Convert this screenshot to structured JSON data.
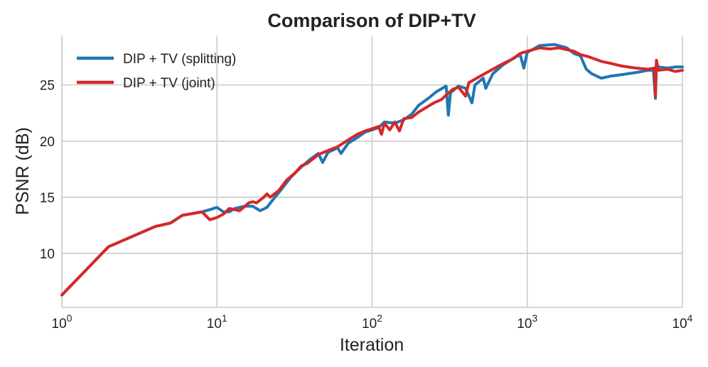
{
  "chart_data": {
    "type": "line",
    "title": "Comparison of DIP+TV",
    "xlabel": "Iteration",
    "ylabel": "PSNR (dB)",
    "xscale": "log",
    "xlim": [
      1,
      10000
    ],
    "ylim": [
      5.2,
      29.4
    ],
    "x_ticks": [
      {
        "value": 1,
        "base": "10",
        "exp": "0"
      },
      {
        "value": 10,
        "base": "10",
        "exp": "1"
      },
      {
        "value": 100,
        "base": "10",
        "exp": "2"
      },
      {
        "value": 1000,
        "base": "10",
        "exp": "3"
      },
      {
        "value": 10000,
        "base": "10",
        "exp": "4"
      }
    ],
    "y_ticks": [
      {
        "value": 10,
        "label": "10"
      },
      {
        "value": 15,
        "label": "15"
      },
      {
        "value": 20,
        "label": "20"
      },
      {
        "value": 25,
        "label": "25"
      }
    ],
    "grid": true,
    "legend_position": "top-left",
    "series": [
      {
        "name": "DIP + TV (splitting)",
        "color": "#1f77b4",
        "points": [
          [
            1,
            6.3
          ],
          [
            2,
            10.6
          ],
          [
            4,
            12.4
          ],
          [
            5,
            12.7
          ],
          [
            6,
            13.4
          ],
          [
            8,
            13.7
          ],
          [
            9,
            13.9
          ],
          [
            10,
            14.1
          ],
          [
            11,
            13.7
          ],
          [
            12,
            13.7
          ],
          [
            13,
            14.0
          ],
          [
            15,
            14.2
          ],
          [
            17,
            14.2
          ],
          [
            19,
            13.8
          ],
          [
            21,
            14.1
          ],
          [
            23,
            14.8
          ],
          [
            26,
            15.7
          ],
          [
            30,
            16.8
          ],
          [
            35,
            17.7
          ],
          [
            40,
            18.4
          ],
          [
            45,
            18.9
          ],
          [
            48,
            18.1
          ],
          [
            52,
            19.0
          ],
          [
            60,
            19.4
          ],
          [
            63,
            18.9
          ],
          [
            70,
            19.8
          ],
          [
            80,
            20.3
          ],
          [
            90,
            20.8
          ],
          [
            100,
            21.0
          ],
          [
            110,
            21.2
          ],
          [
            120,
            21.7
          ],
          [
            140,
            21.6
          ],
          [
            160,
            21.9
          ],
          [
            180,
            22.4
          ],
          [
            200,
            23.2
          ],
          [
            230,
            23.8
          ],
          [
            260,
            24.4
          ],
          [
            300,
            24.9
          ],
          [
            310,
            22.3
          ],
          [
            320,
            24.3
          ],
          [
            360,
            24.9
          ],
          [
            400,
            24.7
          ],
          [
            440,
            23.4
          ],
          [
            460,
            25.0
          ],
          [
            520,
            25.6
          ],
          [
            540,
            24.7
          ],
          [
            600,
            26.0
          ],
          [
            700,
            26.8
          ],
          [
            800,
            27.3
          ],
          [
            900,
            27.7
          ],
          [
            950,
            26.5
          ],
          [
            1000,
            27.9
          ],
          [
            1200,
            28.5
          ],
          [
            1500,
            28.6
          ],
          [
            1800,
            28.3
          ],
          [
            2000,
            27.8
          ],
          [
            2200,
            27.6
          ],
          [
            2400,
            26.4
          ],
          [
            2600,
            26.0
          ],
          [
            3000,
            25.6
          ],
          [
            3500,
            25.8
          ],
          [
            4000,
            25.9
          ],
          [
            5000,
            26.1
          ],
          [
            6000,
            26.3
          ],
          [
            6500,
            26.3
          ],
          [
            6700,
            23.8
          ],
          [
            6800,
            27.0
          ],
          [
            7000,
            26.6
          ],
          [
            8000,
            26.5
          ],
          [
            9000,
            26.6
          ],
          [
            10000,
            26.6
          ]
        ]
      },
      {
        "name": "DIP + TV (joint)",
        "color": "#d62728",
        "points": [
          [
            1,
            6.3
          ],
          [
            2,
            10.6
          ],
          [
            4,
            12.4
          ],
          [
            5,
            12.7
          ],
          [
            6,
            13.4
          ],
          [
            8,
            13.7
          ],
          [
            9,
            13.0
          ],
          [
            10,
            13.2
          ],
          [
            11,
            13.5
          ],
          [
            12,
            14.0
          ],
          [
            14,
            13.8
          ],
          [
            16,
            14.5
          ],
          [
            17,
            14.6
          ],
          [
            18,
            14.5
          ],
          [
            20,
            15.0
          ],
          [
            21,
            15.3
          ],
          [
            22,
            15.0
          ],
          [
            25,
            15.6
          ],
          [
            28,
            16.5
          ],
          [
            32,
            17.2
          ],
          [
            35,
            17.8
          ],
          [
            38,
            18.0
          ],
          [
            45,
            18.8
          ],
          [
            55,
            19.3
          ],
          [
            60,
            19.5
          ],
          [
            70,
            20.1
          ],
          [
            80,
            20.6
          ],
          [
            90,
            20.9
          ],
          [
            100,
            21.1
          ],
          [
            110,
            21.3
          ],
          [
            115,
            20.6
          ],
          [
            120,
            21.6
          ],
          [
            130,
            21.0
          ],
          [
            140,
            21.7
          ],
          [
            150,
            20.9
          ],
          [
            160,
            22.0
          ],
          [
            180,
            22.1
          ],
          [
            200,
            22.6
          ],
          [
            230,
            23.1
          ],
          [
            250,
            23.4
          ],
          [
            280,
            23.7
          ],
          [
            300,
            24.1
          ],
          [
            330,
            24.6
          ],
          [
            360,
            24.8
          ],
          [
            400,
            24.0
          ],
          [
            420,
            25.2
          ],
          [
            500,
            25.8
          ],
          [
            600,
            26.4
          ],
          [
            700,
            26.9
          ],
          [
            800,
            27.3
          ],
          [
            900,
            27.8
          ],
          [
            1000,
            28.0
          ],
          [
            1200,
            28.3
          ],
          [
            1400,
            28.2
          ],
          [
            1600,
            28.3
          ],
          [
            2000,
            28.0
          ],
          [
            2200,
            27.7
          ],
          [
            2500,
            27.5
          ],
          [
            3000,
            27.1
          ],
          [
            3500,
            26.9
          ],
          [
            4000,
            26.7
          ],
          [
            5000,
            26.5
          ],
          [
            6000,
            26.4
          ],
          [
            6600,
            26.5
          ],
          [
            6700,
            24.0
          ],
          [
            6800,
            27.2
          ],
          [
            7000,
            26.3
          ],
          [
            8000,
            26.4
          ],
          [
            9000,
            26.2
          ],
          [
            10000,
            26.3
          ]
        ]
      }
    ]
  }
}
